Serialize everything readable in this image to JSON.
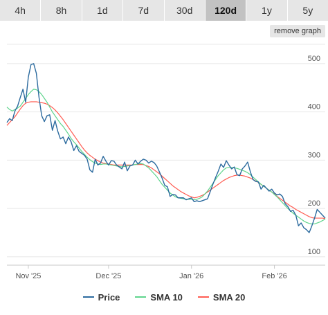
{
  "tabs": [
    {
      "label": "4h"
    },
    {
      "label": "8h"
    },
    {
      "label": "1d"
    },
    {
      "label": "7d"
    },
    {
      "label": "30d"
    },
    {
      "label": "120d",
      "active": true
    },
    {
      "label": "1y"
    },
    {
      "label": "5y"
    }
  ],
  "remove_graph_label": "remove graph",
  "chart_data": {
    "type": "line",
    "ylim": [
      84,
      540
    ],
    "y_ticks": [
      100,
      200,
      300,
      400,
      500
    ],
    "y_tick_labels": [
      "100",
      "200",
      "300",
      "400",
      "500"
    ],
    "grid": true,
    "legend_position": "bottom",
    "x_ticks": [
      {
        "label": "Nov '25",
        "x": 8
      },
      {
        "label": "Dec '25",
        "x": 38
      },
      {
        "label": "Jan '26",
        "x": 69
      },
      {
        "label": "Feb '26",
        "x": 100
      }
    ],
    "series": [
      {
        "name": "Price",
        "color": "#2b6a9e",
        "x": [
          0,
          1,
          2,
          3,
          4,
          5,
          6,
          7,
          8,
          9,
          10,
          11,
          12,
          13,
          14,
          15,
          16,
          17,
          18,
          19,
          20,
          21,
          22,
          23,
          24,
          25,
          26,
          27,
          28,
          29,
          30,
          31,
          32,
          33,
          34,
          35,
          36,
          37,
          38,
          39,
          40,
          41,
          42,
          43,
          44,
          45,
          46,
          47,
          48,
          49,
          50,
          51,
          52,
          53,
          54,
          55,
          56,
          57,
          58,
          59,
          60,
          61,
          62,
          63,
          64,
          65,
          66,
          67,
          68,
          69,
          70,
          71,
          72,
          73,
          74,
          75,
          76,
          77,
          78,
          79,
          80,
          81,
          82,
          83,
          84,
          85,
          86,
          87,
          88,
          89,
          90,
          91,
          92,
          93,
          94,
          95,
          96,
          97,
          98,
          99,
          100,
          101,
          102,
          103,
          104,
          105,
          106,
          107,
          108,
          109,
          110,
          111,
          112,
          113,
          114,
          115,
          116,
          117,
          118,
          119
        ],
        "values": [
          378,
          386,
          382,
          402,
          412,
          430,
          447,
          420,
          472,
          498,
          500,
          480,
          430,
          392,
          380,
          392,
          394,
          362,
          382,
          360,
          344,
          348,
          334,
          348,
          338,
          320,
          330,
          318,
          314,
          310,
          302,
          280,
          275,
          302,
          290,
          294,
          308,
          298,
          290,
          299,
          298,
          290,
          286,
          282,
          296,
          278,
          288,
          290,
          300,
          292,
          298,
          302,
          300,
          294,
          298,
          295,
          288,
          276,
          263,
          248,
          245,
          225,
          229,
          228,
          222,
          222,
          222,
          218,
          220,
          222,
          214,
          216,
          214,
          216,
          218,
          220,
          235,
          250,
          264,
          277,
          292,
          285,
          299,
          290,
          282,
          286,
          270,
          268,
          282,
          288,
          296,
          276,
          260,
          256,
          255,
          240,
          248,
          242,
          236,
          240,
          232,
          228,
          230,
          225,
          210,
          204,
          194,
          196,
          186,
          164,
          170,
          160,
          156,
          150,
          164,
          180,
          198,
          192,
          186,
          180
        ]
      },
      {
        "name": "SMA 10",
        "color": "#5ed48c",
        "x": [
          0,
          1,
          2,
          3,
          4,
          5,
          6,
          7,
          8,
          9,
          10,
          11,
          12,
          13,
          14,
          15,
          16,
          17,
          18,
          19,
          20,
          21,
          22,
          23,
          24,
          25,
          26,
          27,
          28,
          29,
          30,
          31,
          32,
          33,
          34,
          35,
          36,
          37,
          38,
          39,
          40,
          41,
          42,
          43,
          44,
          45,
          46,
          47,
          48,
          49,
          50,
          51,
          52,
          53,
          54,
          55,
          56,
          57,
          58,
          59,
          60,
          61,
          62,
          63,
          64,
          65,
          66,
          67,
          68,
          69,
          70,
          71,
          72,
          73,
          74,
          75,
          76,
          77,
          78,
          79,
          80,
          81,
          82,
          83,
          84,
          85,
          86,
          87,
          88,
          89,
          90,
          91,
          92,
          93,
          94,
          95,
          96,
          97,
          98,
          99,
          100,
          101,
          102,
          103,
          104,
          105,
          106,
          107,
          108,
          109,
          110,
          111,
          112,
          113,
          114,
          115,
          116,
          117,
          118,
          119
        ],
        "values": [
          410,
          405,
          402,
          405,
          408,
          412,
          420,
          428,
          436,
          442,
          447,
          446,
          442,
          436,
          428,
          420,
          410,
          400,
          392,
          384,
          376,
          370,
          362,
          354,
          345,
          338,
          332,
          325,
          318,
          312,
          306,
          301,
          297,
          294,
          292,
          291,
          292,
          292,
          291,
          290,
          289,
          288,
          287,
          286,
          287,
          288,
          289,
          290,
          291,
          292,
          293,
          292,
          288,
          284,
          278,
          272,
          266,
          258,
          250,
          244,
          238,
          232,
          228,
          224,
          222,
          221,
          220,
          219,
          219,
          219,
          218,
          219,
          221,
          224,
          230,
          236,
          244,
          252,
          260,
          268,
          274,
          280,
          284,
          285,
          285,
          284,
          283,
          281,
          279,
          277,
          274,
          270,
          265,
          260,
          255,
          250,
          246,
          242,
          238,
          234,
          229,
          224,
          218,
          212,
          206,
          200,
          195,
          190,
          186,
          182,
          178,
          174,
          171,
          169,
          168,
          168,
          170,
          172,
          175,
          178
        ]
      },
      {
        "name": "SMA 20",
        "color": "#ff5c52",
        "x": [
          0,
          1,
          2,
          3,
          4,
          5,
          6,
          7,
          8,
          9,
          10,
          11,
          12,
          13,
          14,
          15,
          16,
          17,
          18,
          19,
          20,
          21,
          22,
          23,
          24,
          25,
          26,
          27,
          28,
          29,
          30,
          31,
          32,
          33,
          34,
          35,
          36,
          37,
          38,
          39,
          40,
          41,
          42,
          43,
          44,
          45,
          46,
          47,
          48,
          49,
          50,
          51,
          52,
          53,
          54,
          55,
          56,
          57,
          58,
          59,
          60,
          61,
          62,
          63,
          64,
          65,
          66,
          67,
          68,
          69,
          70,
          71,
          72,
          73,
          74,
          75,
          76,
          77,
          78,
          79,
          80,
          81,
          82,
          83,
          84,
          85,
          86,
          87,
          88,
          89,
          90,
          91,
          92,
          93,
          94,
          95,
          96,
          97,
          98,
          99,
          100,
          101,
          102,
          103,
          104,
          105,
          106,
          107,
          108,
          109,
          110,
          111,
          112,
          113,
          114,
          115,
          116,
          117,
          118,
          119
        ],
        "values": [
          372,
          378,
          384,
          390,
          398,
          406,
          413,
          418,
          420,
          421,
          421,
          421,
          420,
          419,
          418,
          416,
          413,
          409,
          404,
          398,
          391,
          384,
          376,
          368,
          360,
          352,
          344,
          336,
          328,
          321,
          315,
          310,
          306,
          302,
          299,
          296,
          294,
          293,
          292,
          291,
          290,
          290,
          290,
          290,
          290,
          290,
          290,
          290,
          291,
          291,
          291,
          291,
          289,
          287,
          284,
          280,
          276,
          272,
          267,
          262,
          257,
          252,
          247,
          243,
          239,
          235,
          232,
          229,
          226,
          224,
          222,
          223,
          225,
          227,
          230,
          234,
          238,
          242,
          246,
          250,
          254,
          258,
          261,
          264,
          266,
          268,
          269,
          269,
          268,
          267,
          265,
          263,
          260,
          257,
          254,
          250,
          246,
          242,
          238,
          234,
          230,
          225,
          221,
          217,
          213,
          209,
          205,
          202,
          198,
          195,
          192,
          189,
          186,
          183,
          181,
          180,
          180,
          180,
          180,
          179
        ]
      }
    ]
  },
  "legend": [
    {
      "label": "Price",
      "color": "#2b6a9e"
    },
    {
      "label": "SMA 10",
      "color": "#5ed48c"
    },
    {
      "label": "SMA 20",
      "color": "#ff5c52"
    }
  ]
}
